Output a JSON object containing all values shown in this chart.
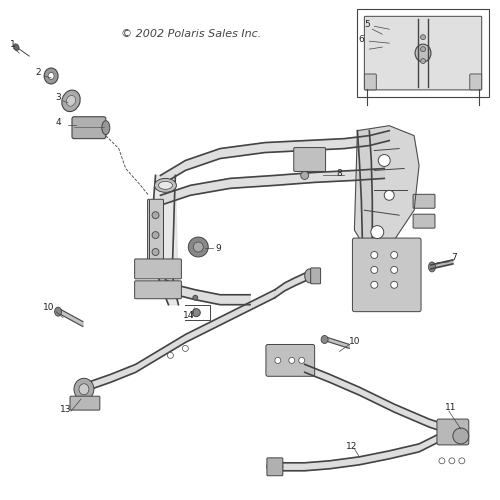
{
  "copyright_text": "© 2002 Polaris Sales Inc.",
  "background_color": "#ffffff",
  "line_color": "#444444",
  "label_color": "#222222",
  "label_fontsize": 6.5,
  "fig_width": 5.0,
  "fig_height": 5.0,
  "dpi": 100
}
